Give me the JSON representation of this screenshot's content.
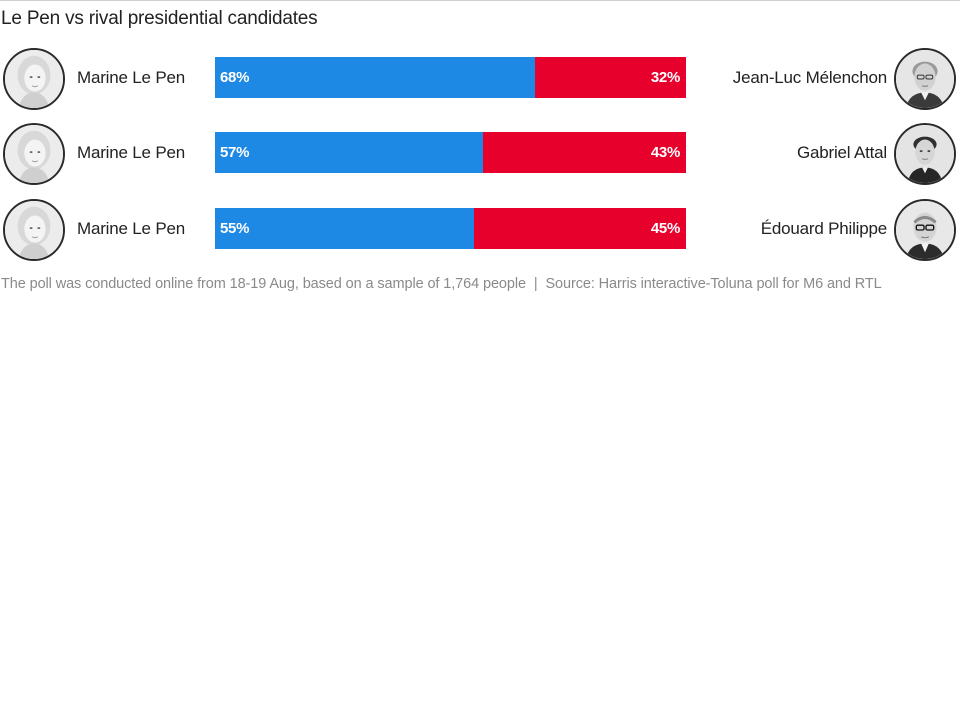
{
  "chart_data": {
    "type": "bar",
    "orientation": "horizontal-stacked-100",
    "title": "Le Pen vs rival presidential candidates",
    "colors": {
      "left": "#1e88e5",
      "right": "#e8002d"
    },
    "rows": [
      {
        "left_name": "Marine Le Pen",
        "right_name": "Jean-Luc Mélenchon",
        "left_value": 68,
        "right_value": 32,
        "left_label": "68%",
        "right_label": "32%"
      },
      {
        "left_name": "Marine Le Pen",
        "right_name": "Gabriel Attal",
        "left_value": 57,
        "right_value": 43,
        "left_label": "57%",
        "right_label": "43%"
      },
      {
        "left_name": "Marine Le Pen",
        "right_name": "Édouard Philippe",
        "left_value": 55,
        "right_value": 45,
        "left_label": "55%",
        "right_label": "45%"
      }
    ],
    "xlim": [
      0,
      100
    ]
  },
  "footnote": {
    "method": "The poll was conducted online from 18-19 Aug, based on a sample of 1,764 people",
    "separator": "|",
    "source": "Source: Harris interactive-Toluna poll for M6 and RTL"
  }
}
